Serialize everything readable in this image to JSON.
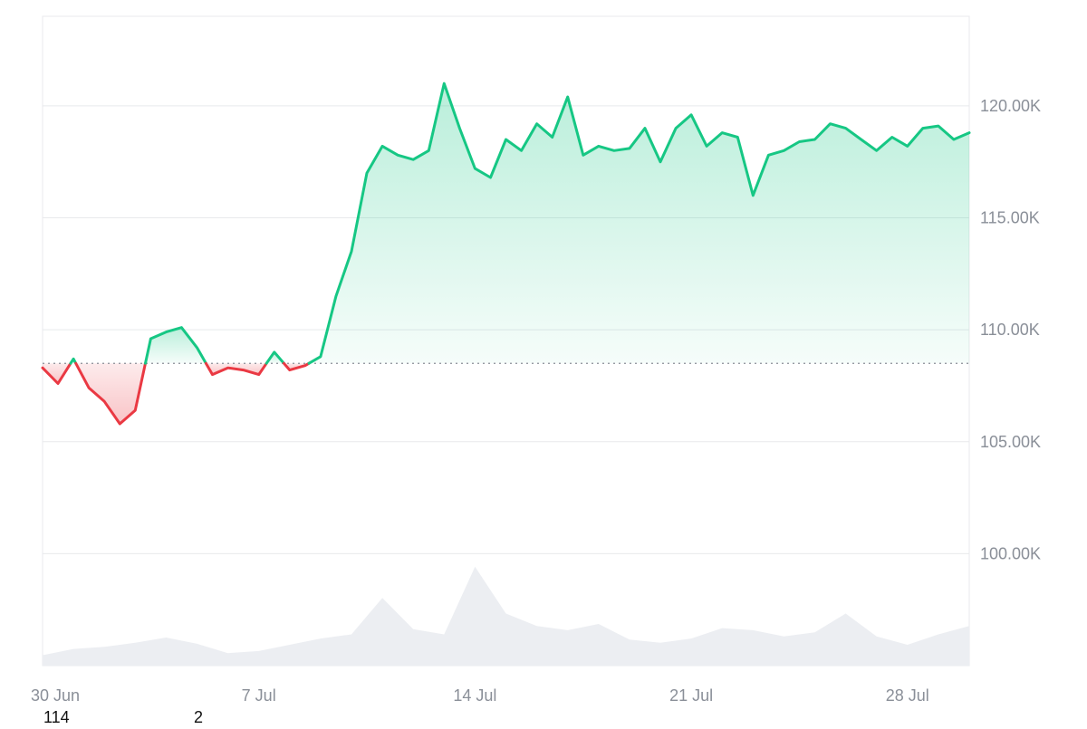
{
  "colors": {
    "up_line": "#16c784",
    "up_fill": "#16c784",
    "down_line": "#ea3943",
    "down_fill": "#ea3943",
    "grid": "#e8e9ec",
    "baseline": "#8a8f98",
    "volume": "#eceef2",
    "tick_text": "#8a8f98"
  },
  "footnote": {
    "left": "114",
    "right": "2"
  },
  "chart_data": {
    "type": "area",
    "x_axis": {
      "type": "date",
      "range": [
        "2025-06-30",
        "2025-07-30"
      ],
      "tick_labels": [
        "30 Jun",
        "7 Jul",
        "14 Jul",
        "21 Jul",
        "28 Jul"
      ],
      "tick_dates": [
        "2025-06-30",
        "2025-07-07",
        "2025-07-14",
        "2025-07-21",
        "2025-07-28"
      ]
    },
    "y_axis": {
      "position": "right",
      "range": [
        95000,
        124000
      ],
      "tick_values": [
        100000,
        105000,
        110000,
        115000,
        120000
      ],
      "tick_labels": [
        "100.00K",
        "105.00K",
        "110.00K",
        "115.00K",
        "120.00K"
      ]
    },
    "grid": true,
    "baseline_value": 108500,
    "price": {
      "x": [
        "2025-06-30",
        "2025-06-30 12:00",
        "2025-07-01",
        "2025-07-01 12:00",
        "2025-07-02",
        "2025-07-02 12:00",
        "2025-07-03",
        "2025-07-03 12:00",
        "2025-07-04",
        "2025-07-04 12:00",
        "2025-07-05",
        "2025-07-05 12:00",
        "2025-07-06",
        "2025-07-06 12:00",
        "2025-07-07",
        "2025-07-07 12:00",
        "2025-07-08",
        "2025-07-08 12:00",
        "2025-07-09",
        "2025-07-09 12:00",
        "2025-07-10",
        "2025-07-10 12:00",
        "2025-07-11",
        "2025-07-11 12:00",
        "2025-07-12",
        "2025-07-12 12:00",
        "2025-07-13",
        "2025-07-13 12:00",
        "2025-07-14",
        "2025-07-14 12:00",
        "2025-07-15",
        "2025-07-15 12:00",
        "2025-07-16",
        "2025-07-16 12:00",
        "2025-07-17",
        "2025-07-17 12:00",
        "2025-07-18",
        "2025-07-18 12:00",
        "2025-07-19",
        "2025-07-19 12:00",
        "2025-07-20",
        "2025-07-20 12:00",
        "2025-07-21",
        "2025-07-21 12:00",
        "2025-07-22",
        "2025-07-22 12:00",
        "2025-07-23",
        "2025-07-23 12:00",
        "2025-07-24",
        "2025-07-24 12:00",
        "2025-07-25",
        "2025-07-25 12:00",
        "2025-07-26",
        "2025-07-26 12:00",
        "2025-07-27",
        "2025-07-27 12:00",
        "2025-07-28",
        "2025-07-28 12:00",
        "2025-07-29",
        "2025-07-29 12:00",
        "2025-07-30"
      ],
      "y": [
        108300,
        107600,
        108700,
        107400,
        106800,
        105800,
        106400,
        109600,
        109900,
        110100,
        109200,
        108000,
        108300,
        108200,
        108000,
        109000,
        108200,
        108400,
        108800,
        111500,
        113500,
        117000,
        118200,
        117800,
        117600,
        118000,
        121000,
        119000,
        117200,
        116800,
        118500,
        118000,
        119200,
        118600,
        120400,
        117800,
        118200,
        118000,
        118100,
        119000,
        117500,
        119000,
        119600,
        118200,
        118800,
        118600,
        116000,
        117800,
        118000,
        118400,
        118500,
        119200,
        119000,
        118500,
        118000,
        118600,
        118200,
        119000,
        119100,
        118500,
        118800
      ]
    },
    "volume": {
      "x": [
        "2025-06-30",
        "2025-07-01",
        "2025-07-02",
        "2025-07-03",
        "2025-07-04",
        "2025-07-05",
        "2025-07-06",
        "2025-07-07",
        "2025-07-08",
        "2025-07-09",
        "2025-07-10",
        "2025-07-11",
        "2025-07-12",
        "2025-07-13",
        "2025-07-14",
        "2025-07-15",
        "2025-07-16",
        "2025-07-17",
        "2025-07-18",
        "2025-07-19",
        "2025-07-20",
        "2025-07-21",
        "2025-07-22",
        "2025-07-23",
        "2025-07-24",
        "2025-07-25",
        "2025-07-26",
        "2025-07-27",
        "2025-07-28",
        "2025-07-29",
        "2025-07-30"
      ],
      "y": [
        0.1,
        0.16,
        0.18,
        0.22,
        0.27,
        0.21,
        0.12,
        0.14,
        0.2,
        0.26,
        0.3,
        0.65,
        0.35,
        0.3,
        0.95,
        0.5,
        0.38,
        0.34,
        0.4,
        0.25,
        0.22,
        0.26,
        0.36,
        0.34,
        0.28,
        0.32,
        0.5,
        0.28,
        0.2,
        0.3,
        0.38
      ]
    }
  }
}
